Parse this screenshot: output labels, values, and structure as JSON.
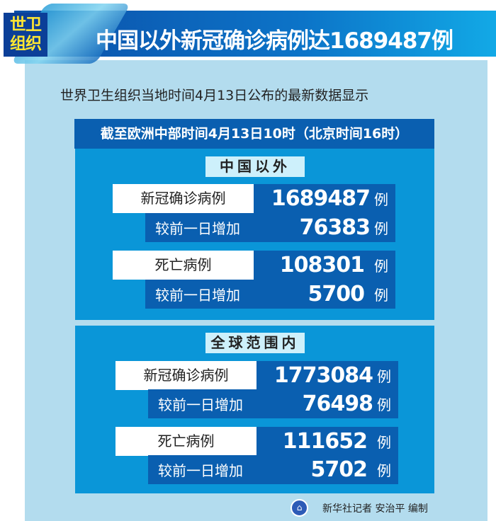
{
  "header": {
    "badge": "世卫组织",
    "title": "中国以外新冠确诊病例达1689487例"
  },
  "intro": "世界卫生组织当地时间4月13日公布的最新数据显示",
  "cutoff": "截至欧洲中部时间4月13日10时（北京时间16时）",
  "sections": [
    {
      "title": "中国以外",
      "rows": [
        {
          "label": "新冠确诊病例",
          "value": "1689487",
          "unit": "例"
        },
        {
          "label": "较前一日增加",
          "value": "76383",
          "unit": "例"
        },
        {
          "label": "死亡病例",
          "value": "108301",
          "unit": "例"
        },
        {
          "label": "较前一日增加",
          "value": "5700",
          "unit": "例"
        }
      ]
    },
    {
      "title": "全球范围内",
      "rows": [
        {
          "label": "新冠确诊病例",
          "value": "1773084",
          "unit": "例"
        },
        {
          "label": "较前一日增加",
          "value": "76498",
          "unit": "例"
        },
        {
          "label": "死亡病例",
          "value": "111652",
          "unit": "例"
        },
        {
          "label": "较前一日增加",
          "value": "5702",
          "unit": "例"
        }
      ]
    }
  ],
  "credit": {
    "text": "新华社记者 安治平 编制",
    "logo_icon": "xinhua-logo-icon"
  },
  "colors": {
    "banner": "#0c74c8",
    "panel": "#b3dcee",
    "section": "#0a96d8",
    "row": "#0a5fb0",
    "badge_text": "#ffe632"
  }
}
